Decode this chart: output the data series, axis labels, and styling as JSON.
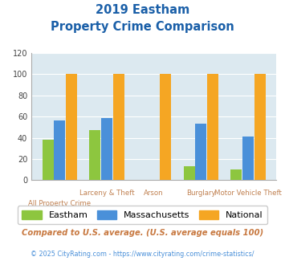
{
  "title_line1": "2019 Eastham",
  "title_line2": "Property Crime Comparison",
  "categories": [
    "All Property Crime",
    "Larceny & Theft",
    "Arson",
    "Burglary",
    "Motor Vehicle Theft"
  ],
  "eastham": [
    38,
    47,
    0,
    13,
    10
  ],
  "massachusetts": [
    56,
    59,
    0,
    53,
    41
  ],
  "national": [
    100,
    100,
    100,
    100,
    100
  ],
  "colors": {
    "eastham": "#8dc63f",
    "massachusetts": "#4a90d9",
    "national": "#f5a623"
  },
  "ylim": [
    0,
    120
  ],
  "yticks": [
    0,
    20,
    40,
    60,
    80,
    100,
    120
  ],
  "background_color": "#dce9f0",
  "title_color": "#1a5fa8",
  "xlabel_color": "#c08050",
  "legend_label1": "Eastham",
  "legend_label2": "Massachusetts",
  "legend_label3": "National",
  "footnote1": "Compared to U.S. average. (U.S. average equals 100)",
  "footnote2": "© 2025 CityRating.com - https://www.cityrating.com/crime-statistics/",
  "footnote1_color": "#c87941",
  "footnote2_color": "#4a90d9"
}
